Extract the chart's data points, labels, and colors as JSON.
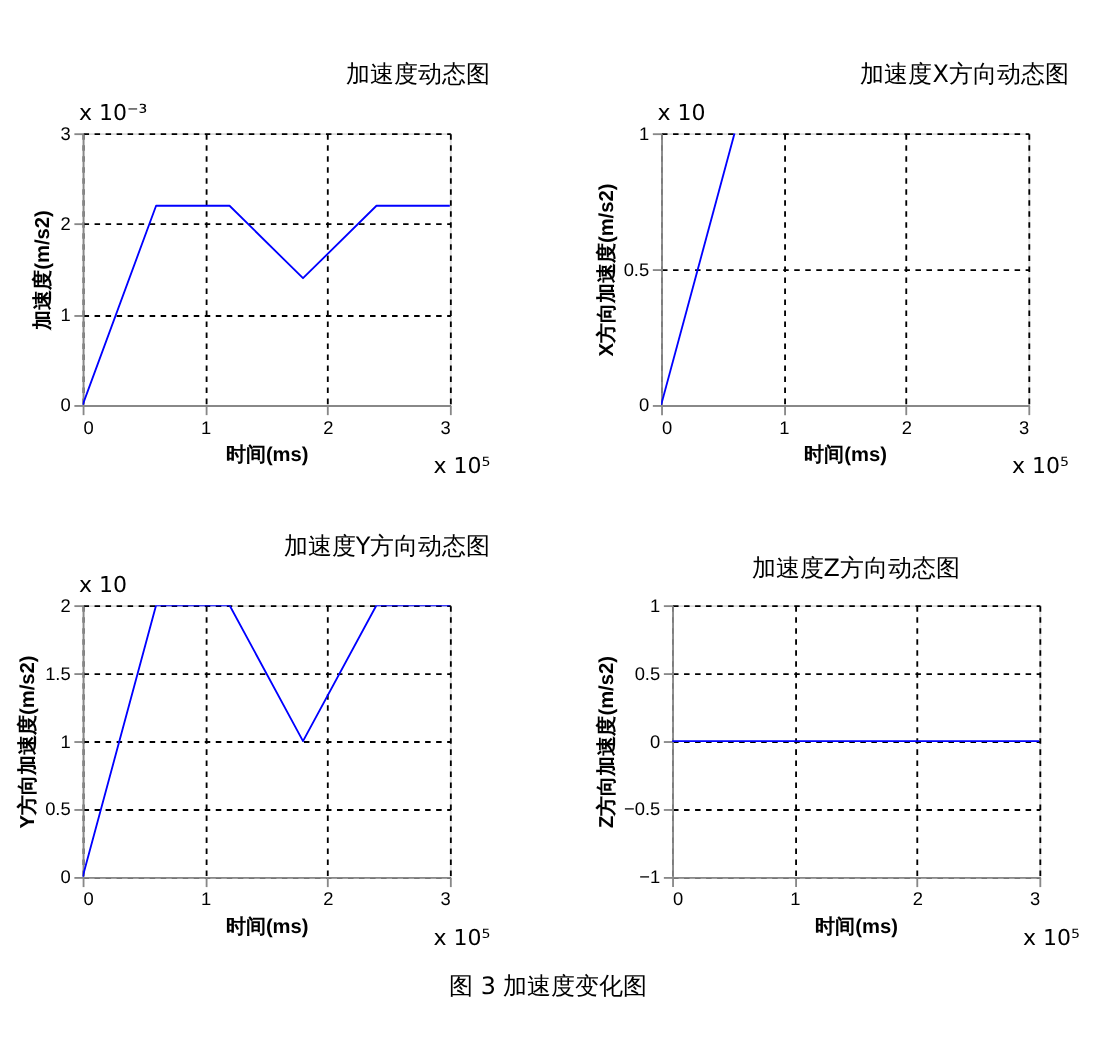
{
  "chart_data": [
    {
      "type": "line",
      "title": "加速度动态图",
      "xlabel": "时间(ms)",
      "ylabel": "加速度(m/s2)",
      "x": [
        0,
        0.6,
        1.2,
        1.8,
        2.4,
        3
      ],
      "values": [
        0,
        2.2,
        2.2,
        1.4,
        2.2,
        2.2
      ],
      "color": "#0000ff",
      "xlim": [
        0,
        3
      ],
      "ylim": [
        0,
        3
      ],
      "xticks": [
        0,
        1,
        2,
        3
      ],
      "yticks": [
        0,
        1,
        2,
        3
      ],
      "grid": true,
      "annotations": [
        "x 10⁻³",
        "x 10⁵"
      ]
    },
    {
      "type": "line",
      "title": "加速度X方向动态图",
      "xlabel": "时间(ms)",
      "ylabel": "X方向加速度(m/s2)",
      "x": [
        0,
        0.6
      ],
      "values": [
        0,
        1
      ],
      "color": "#0000ff",
      "xlim": [
        0,
        3
      ],
      "ylim": [
        0,
        1
      ],
      "xticks": [
        0,
        1,
        2,
        3
      ],
      "yticks": [
        0,
        0.5,
        1
      ],
      "grid": true,
      "annotations": [
        "x 10",
        "x 10⁵"
      ]
    },
    {
      "type": "line",
      "title": "加速度Y方向动态图",
      "xlabel": "时间(ms)",
      "ylabel": "Y方向加速度(m/s2)",
      "x": [
        0,
        0.6,
        1.2,
        1.8,
        2.4,
        3
      ],
      "values": [
        0,
        2,
        2,
        1,
        2,
        2
      ],
      "color": "#0000ff",
      "xlim": [
        0,
        3
      ],
      "ylim": [
        0,
        2
      ],
      "xticks": [
        0,
        1,
        2,
        3
      ],
      "yticks": [
        0,
        0.5,
        1,
        1.5,
        2
      ],
      "grid": true,
      "annotations": [
        "x 10",
        "x 10⁵"
      ]
    },
    {
      "type": "line",
      "title": "加速度Z方向动态图",
      "xlabel": "时间(ms)",
      "ylabel": "Z方向加速度(m/s2)",
      "x": [
        0,
        3
      ],
      "values": [
        0,
        0
      ],
      "color": "#0000ff",
      "xlim": [
        0,
        3
      ],
      "ylim": [
        -1,
        1
      ],
      "xticks": [
        0,
        1,
        2,
        3
      ],
      "yticks": [
        -1,
        -0.5,
        0,
        0.5,
        1
      ],
      "grid": true,
      "annotations": [
        "x 10⁵",
        "图 3 加速度变化图"
      ]
    }
  ]
}
